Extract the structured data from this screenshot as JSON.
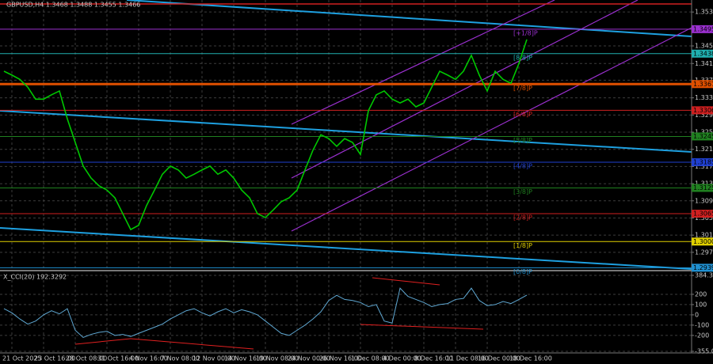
{
  "chart_data": [
    {
      "type": "line",
      "title": "GBPUSD,H4 1.3468 1.3488 1.3455 1.3466",
      "categories": [
        null,
        "21 Oct 2025",
        null,
        null,
        null,
        "23 Oct 16:00",
        null,
        null,
        null,
        "28 Oct 08:00",
        null,
        null,
        null,
        "31 Oct 16:00",
        null,
        null,
        null,
        "4 Nov 16:00",
        null,
        null,
        null,
        "7 Nov 08:00",
        null,
        null,
        null,
        "12 Nov 00:00",
        null,
        null,
        null,
        "14 Nov 16:00",
        null,
        null,
        null,
        "19 Nov 08:00",
        null,
        null,
        null,
        "24 Nov 00:00",
        null,
        null,
        null,
        "26 Nov 16:00",
        null,
        null,
        null,
        "1 Dec 08:00",
        null,
        null,
        null,
        "4 Dec 00:00",
        null,
        null,
        null,
        "8 Dec 16:00",
        null,
        null,
        null,
        "11 Dec 08:00",
        null,
        null,
        null,
        "16 Dec 00:00",
        null,
        null,
        null,
        "18 Dec 16:00",
        null
      ],
      "series": [
        {
          "color": "#00c800",
          "values": [
            1.3397,
            1.3388,
            1.3378,
            1.336,
            1.3332,
            1.3332,
            1.3342,
            1.3351,
            1.3286,
            1.3231,
            1.3176,
            1.3148,
            1.313,
            1.312,
            1.3102,
            1.3065,
            1.3028,
            1.3038,
            1.3084,
            1.312,
            1.3157,
            1.3176,
            1.3167,
            1.3148,
            1.3157,
            1.3167,
            1.3176,
            1.3157,
            1.3167,
            1.3148,
            1.312,
            1.3102,
            1.3065,
            1.3056,
            1.3074,
            1.3093,
            1.3102,
            1.312,
            1.3167,
            1.3213,
            1.3249,
            1.324,
            1.3222,
            1.324,
            1.3231,
            1.3203,
            1.3305,
            1.3342,
            1.3351,
            1.3332,
            1.3323,
            1.3332,
            1.3314,
            1.3323,
            1.336,
            1.3397,
            1.3388,
            1.3378,
            1.3397,
            1.3434,
            1.3388,
            1.3351,
            1.3397,
            1.3378,
            1.3369,
            1.3415,
            1.3471
          ]
        }
      ],
      "ylim": [
        1.2936,
        1.3563
      ],
      "yticks": [
        1.3535,
        1.3456,
        1.3415,
        1.3376,
        1.3335,
        1.3295,
        1.3255,
        1.3215,
        1.3175,
        1.3135,
        1.3095,
        1.3055,
        1.3015,
        1.2975
      ],
      "grid": true,
      "levels": {
        "names": [
          "[+1/8]P",
          "[8/8]P",
          "[7/8]P",
          "[6/8]P",
          "[5/8]P",
          "[4/8]P",
          "[3/8]P",
          "[2/8]P",
          "[1/8]P",
          "[0/8]P"
        ],
        "values": [
          1.3495,
          1.3438,
          1.3367,
          1.3306,
          1.3245,
          1.3185,
          1.3125,
          1.3065,
          1.3,
          1.2939
        ],
        "value_labels": [
          "1.3495",
          "1.3438",
          "1.3367",
          "1.3306",
          "1.3245",
          "1.3185",
          "1.3125",
          "1.3065",
          "1.3000",
          "1.2939"
        ],
        "colors": [
          "#9b30d0",
          "#20b0b0",
          "#e05000",
          "#d02020",
          "#208020",
          "#2040d0",
          "#208020",
          "#d02020",
          "#e0d000",
          "#2090d0"
        ]
      }
    },
    {
      "type": "line",
      "title": "X_CCI(20) 192.3292",
      "series": [
        {
          "color": "#5fa8d3",
          "values": [
            60,
            20,
            -40,
            -90,
            -60,
            0,
            40,
            10,
            60,
            -150,
            -220,
            -190,
            -170,
            -160,
            -200,
            -190,
            -210,
            -180,
            -150,
            -120,
            -90,
            -40,
            0,
            40,
            60,
            20,
            -10,
            30,
            60,
            20,
            50,
            30,
            0,
            -60,
            -120,
            -180,
            -200,
            -150,
            -100,
            -40,
            30,
            140,
            190,
            150,
            140,
            120,
            80,
            100,
            -60,
            -80,
            260,
            180,
            150,
            120,
            80,
            100,
            110,
            150,
            160,
            260,
            140,
            90,
            100,
            130,
            110,
            150,
            192.3292
          ]
        }
      ],
      "ylim": [
        -355.031,
        384.3972
      ],
      "yticks": [
        384.3972,
        200,
        100,
        0,
        -100,
        -200,
        -355.031
      ],
      "grid": true
    }
  ]
}
